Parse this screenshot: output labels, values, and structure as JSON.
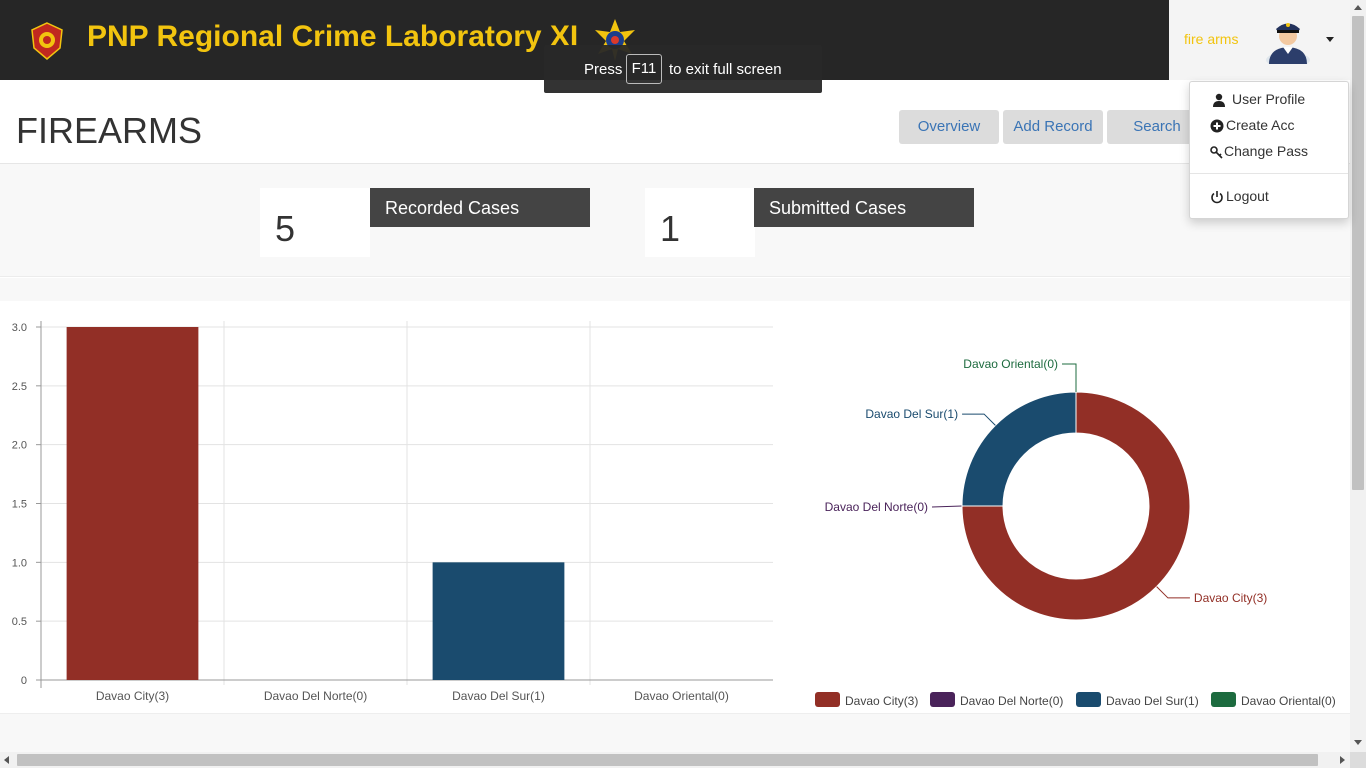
{
  "header": {
    "title": "PNP Regional Crime Laboratory XI",
    "title_color": "#f2c40f",
    "bar_color": "#262626",
    "left_logo": "pnp-badge-icon",
    "right_logo": "crime-lab-seal-icon"
  },
  "user": {
    "name": "fire arms",
    "avatar": "police-officer-avatar-icon"
  },
  "fullscreen_toast": {
    "before": "Press",
    "key": "F11",
    "after": "to exit full screen"
  },
  "page": {
    "title": "FIREARMS"
  },
  "nav": {
    "overview": "Overview",
    "add_record": "Add Record",
    "search": "Search"
  },
  "dropdown": {
    "user_profile": "User Profile",
    "create_acc": "Create Acc",
    "change_pass": "Change Pass",
    "logout": "Logout"
  },
  "stats": {
    "recorded_count": "5",
    "recorded_label": "Recorded Cases",
    "submitted_count": "1",
    "submitted_label": "Submitted Cases"
  },
  "chart_data": [
    {
      "type": "bar",
      "categories": [
        "Davao City(3)",
        "Davao Del Norte(0)",
        "Davao Del Sur(1)",
        "Davao Oriental(0)"
      ],
      "values": [
        3,
        0,
        1,
        0
      ],
      "colors": [
        "#922f26",
        "#4a235a",
        "#1a4b6e",
        "#1d6b3f"
      ],
      "y_ticks": [
        "0",
        "0.5",
        "1.0",
        "1.5",
        "2.0",
        "2.5",
        "3.0"
      ],
      "ylim": [
        0,
        3
      ],
      "grid": true
    },
    {
      "type": "pie",
      "donut": true,
      "labels": [
        "Davao City(3)",
        "Davao Del Norte(0)",
        "Davao Del Sur(1)",
        "Davao Oriental(0)"
      ],
      "values": [
        3,
        0,
        1,
        0
      ],
      "colors": [
        "#922f26",
        "#4a235a",
        "#1a4b6e",
        "#1d6b3f"
      ],
      "legend": [
        "Davao City(3)",
        "Davao Del Norte(0)",
        "Davao Del Sur(1)",
        "Davao Oriental(0)"
      ],
      "legend_placement": "bottom"
    }
  ]
}
